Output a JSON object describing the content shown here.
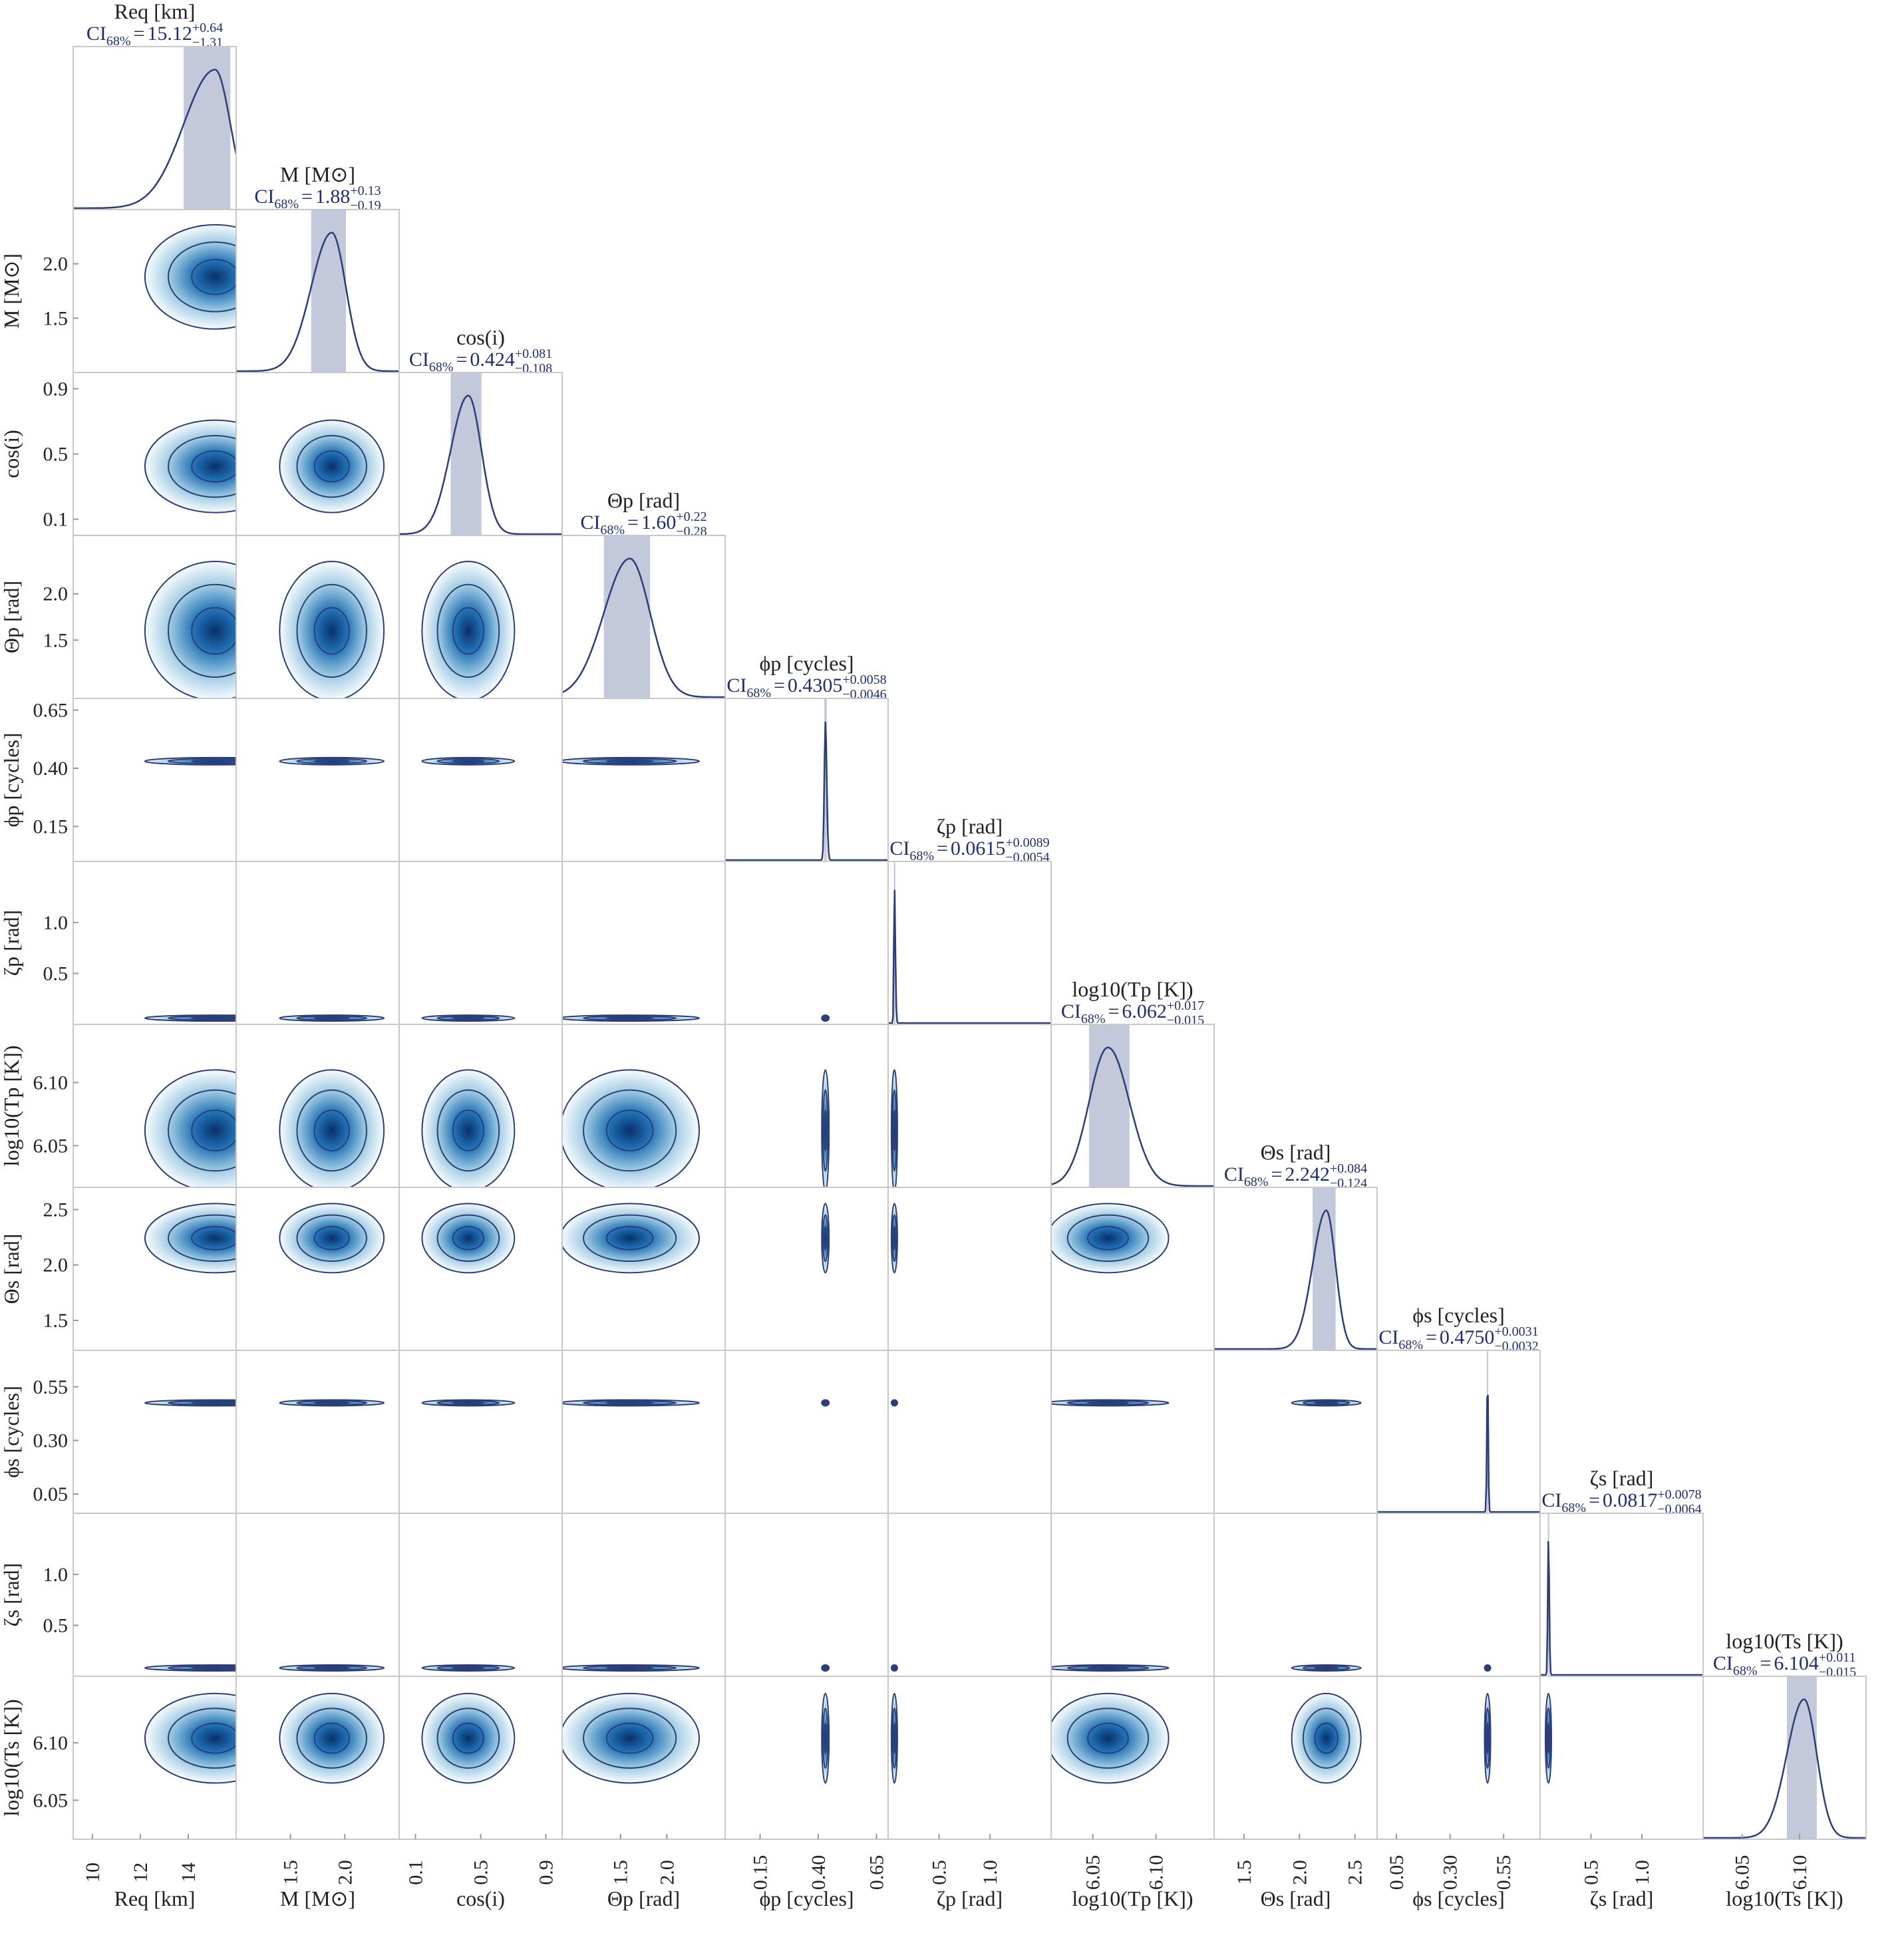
{
  "chart_data": {
    "type": "corner",
    "ci_prefix": "CI",
    "ci_sub": "68%",
    "ci_equals": "=",
    "params": [
      {
        "label": "Req [km]",
        "lim": [
          9.2,
          16.0
        ],
        "ticks": [
          10,
          12,
          14
        ],
        "median": 15.12,
        "plus": {
          "value": 0.64,
          "label": "+0.64"
        },
        "minus": {
          "value": -1.31,
          "label": "−1.31"
        }
      },
      {
        "label": "M [M⊙]",
        "lim": [
          1.0,
          2.5
        ],
        "ticks": [
          1.5,
          {
            "value": 2,
            "label": "2.0"
          }
        ],
        "median": 1.88,
        "plus": {
          "value": 0.13,
          "label": "+0.13"
        },
        "minus": {
          "value": -0.19,
          "label": "−0.19"
        }
      },
      {
        "label": "cos(i)",
        "lim": [
          0.0,
          1.0
        ],
        "ticks": [
          0.1,
          0.5,
          0.9
        ],
        "median": 0.424,
        "plus": {
          "value": 0.081,
          "label": "+0.081"
        },
        "minus": {
          "value": -0.108,
          "label": "−0.108"
        }
      },
      {
        "label": "Θp [rad]",
        "lim": [
          0.87,
          2.63
        ],
        "ticks": [
          1.5,
          {
            "value": 2,
            "label": "2.0"
          }
        ],
        "median": {
          "value": 1.6,
          "label": "1.60"
        },
        "plus": {
          "value": 0.22,
          "label": "+0.22"
        },
        "minus": {
          "value": -0.28,
          "label": "−0.28"
        }
      },
      {
        "label": "ϕp [cycles]",
        "lim": [
          0.0,
          0.7
        ],
        "ticks": [
          0.15,
          {
            "value": 0.4,
            "label": "0.40"
          },
          0.65
        ],
        "median": 0.4305,
        "plus": {
          "value": 0.0058,
          "label": "+0.0058"
        },
        "minus": {
          "value": -0.0046,
          "label": "−0.0046"
        }
      },
      {
        "label": "ζp [rad]",
        "lim": [
          0.0,
          1.6
        ],
        "ticks": [
          0.5,
          {
            "value": 1,
            "label": "1.0"
          }
        ],
        "median": 0.0615,
        "plus": {
          "value": 0.0089,
          "label": "+0.0089"
        },
        "minus": {
          "value": -0.0054,
          "label": "−0.0054"
        }
      },
      {
        "label": "log10(Tp [K])",
        "lim": [
          6.017,
          6.146
        ],
        "ticks": [
          6.05,
          {
            "value": 6.1,
            "label": "6.10"
          }
        ],
        "median": 6.062,
        "plus": {
          "value": 0.017,
          "label": "+0.017"
        },
        "minus": {
          "value": -0.015,
          "label": "−0.015"
        }
      },
      {
        "label": "Θs [rad]",
        "lim": [
          1.23,
          2.7
        ],
        "ticks": [
          1.5,
          {
            "value": 2,
            "label": "2.0"
          },
          2.5
        ],
        "median": 2.242,
        "plus": {
          "value": 0.084,
          "label": "+0.084"
        },
        "minus": {
          "value": -0.124,
          "label": "−0.124"
        }
      },
      {
        "label": "ϕs [cycles]",
        "lim": [
          -0.04,
          0.72
        ],
        "ticks": [
          0.05,
          {
            "value": 0.3,
            "label": "0.30"
          },
          0.55
        ],
        "median": {
          "value": 0.475,
          "label": "0.4750"
        },
        "plus": {
          "value": 0.0031,
          "label": "+0.0031"
        },
        "minus": {
          "value": -0.0032,
          "label": "−0.0032"
        }
      },
      {
        "label": "ζs [rad]",
        "lim": [
          0.0,
          1.6
        ],
        "ticks": [
          0.5,
          {
            "value": 1,
            "label": "1.0"
          }
        ],
        "median": 0.0817,
        "plus": {
          "value": 0.0078,
          "label": "+0.0078"
        },
        "minus": {
          "value": -0.0064,
          "label": "−0.0064"
        }
      },
      {
        "label": "log10(Ts [K])",
        "lim": [
          6.016,
          6.158
        ],
        "ticks": [
          6.05,
          {
            "value": 6.1,
            "label": "6.10"
          }
        ],
        "median": 6.104,
        "plus": {
          "value": 0.011,
          "label": "+0.011"
        },
        "minus": {
          "value": -0.015,
          "label": "−0.015"
        }
      }
    ]
  }
}
